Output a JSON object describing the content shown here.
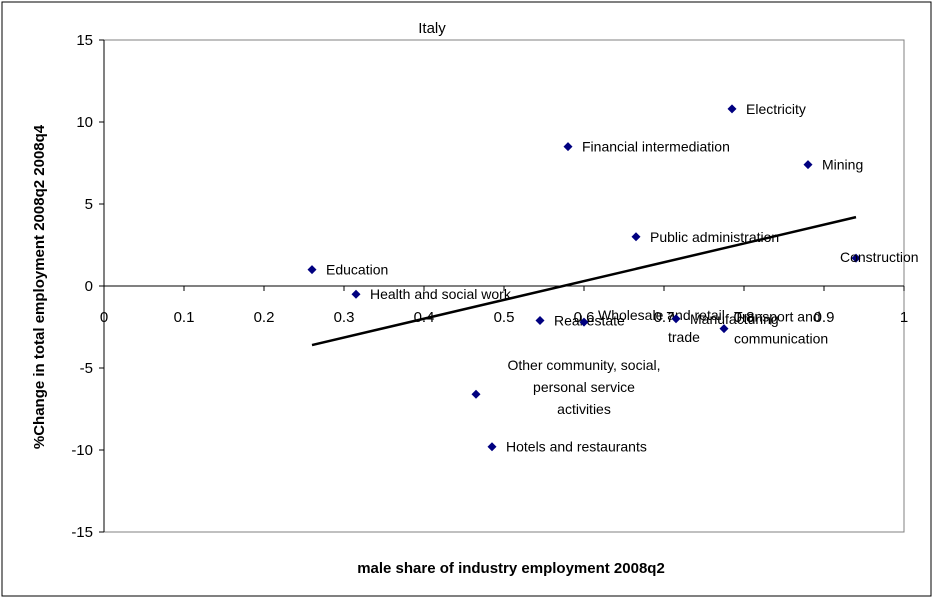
{
  "chart_data": {
    "type": "scatter",
    "title": "Italy",
    "xlabel": "male share of industry employment 2008q2",
    "ylabel": "%Change in total employment 2008q2 2008q4",
    "xlim": [
      0,
      1
    ],
    "ylim": [
      -15,
      15
    ],
    "x_ticks": [
      0,
      0.1,
      0.2,
      0.3,
      0.4,
      0.5,
      0.6,
      0.7,
      0.8,
      0.9,
      1
    ],
    "x_tick_labels": [
      "0",
      "0.1",
      "0.2",
      "0.3",
      "0.4",
      "0.5",
      "0.6",
      "0.7",
      "0.8",
      "0.9",
      "1"
    ],
    "y_ticks": [
      15,
      10,
      5,
      0,
      -5,
      -10,
      -15
    ],
    "y_tick_labels": [
      "15",
      "10",
      "5",
      "0",
      "-5",
      "-10",
      "-15"
    ],
    "grid": false,
    "legend": "none",
    "marker_color": "#000080",
    "points": [
      {
        "label": "Electricity",
        "x": 0.785,
        "y": 10.8
      },
      {
        "label": "Financial intermediation",
        "x": 0.58,
        "y": 8.5
      },
      {
        "label": "Mining",
        "x": 0.88,
        "y": 7.4
      },
      {
        "label": "Public administration",
        "x": 0.665,
        "y": 3.0
      },
      {
        "label": "Construction",
        "x": 0.94,
        "y": 1.7
      },
      {
        "label": "Education",
        "x": 0.26,
        "y": 1.0
      },
      {
        "label": "Health and social work",
        "x": 0.315,
        "y": -0.5
      },
      {
        "label": "Real estate",
        "x": 0.545,
        "y": -2.1
      },
      {
        "label": "Wholesale and retail trade",
        "x": 0.6,
        "y": -2.2
      },
      {
        "label": "Manufacturing",
        "x": 0.715,
        "y": -2.0
      },
      {
        "label": "Transport and communication",
        "x": 0.775,
        "y": -2.6
      },
      {
        "label": "Other community, social, personal service activities",
        "x": 0.465,
        "y": -6.6
      },
      {
        "label": "Hotels and restaurants",
        "x": 0.485,
        "y": -9.8
      }
    ],
    "trendline": {
      "x": [
        0.26,
        0.94
      ],
      "y": [
        -3.6,
        4.2
      ]
    }
  }
}
